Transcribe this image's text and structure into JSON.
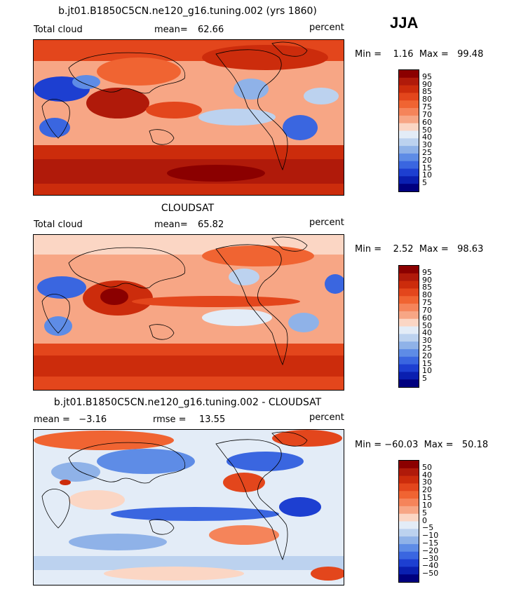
{
  "season": "JJA",
  "panels": [
    {
      "title": "b.jt01.B1850C5CN.ne120_g16.tuning.002 (yrs 1860)",
      "left_label": "Total cloud",
      "stat_label": "mean=",
      "stat_value": "62.66",
      "units": "percent",
      "minmax": "Min =    1.16  Max =   99.48"
    },
    {
      "title": "CLOUDSAT",
      "left_label": "Total cloud",
      "stat_label": "mean=",
      "stat_value": "65.82",
      "units": "percent",
      "minmax": "Min =    2.52  Max =   98.63"
    },
    {
      "title": "b.jt01.B1850C5CN.ne120_g16.tuning.002 - CLOUDSAT",
      "left_label": "mean =   −3.16",
      "stat_label": "rmse =",
      "stat_value": "13.55",
      "units": "percent",
      "minmax": "Min = −60.03  Max =   50.18"
    }
  ],
  "chart_data": [
    {
      "type": "heatmap",
      "title": "b.jt01.B1850C5CN.ne120_g16.tuning.002 (yrs 1860)",
      "variable": "Total cloud",
      "units": "percent",
      "mean": 62.66,
      "min": 1.16,
      "max": 99.48,
      "colorbar_levels": [
        95,
        90,
        85,
        80,
        75,
        70,
        60,
        50,
        40,
        30,
        25,
        20,
        15,
        10,
        5
      ],
      "colorbar_colors": [
        "#8b0000",
        "#b01a0a",
        "#cc2c0c",
        "#e3461c",
        "#f06432",
        "#f5845a",
        "#f7a685",
        "#fbd6c4",
        "#e3ecf7",
        "#bcd2ef",
        "#8fb2e8",
        "#5e8ce6",
        "#3a66e0",
        "#1d3fd1",
        "#0a1fb0",
        "#00007f"
      ]
    },
    {
      "type": "heatmap",
      "title": "CLOUDSAT",
      "variable": "Total cloud",
      "units": "percent",
      "mean": 65.82,
      "min": 2.52,
      "max": 98.63,
      "colorbar_levels": [
        95,
        90,
        85,
        80,
        75,
        70,
        60,
        50,
        40,
        30,
        25,
        20,
        15,
        10,
        5
      ],
      "colorbar_colors": [
        "#8b0000",
        "#b01a0a",
        "#cc2c0c",
        "#e3461c",
        "#f06432",
        "#f5845a",
        "#f7a685",
        "#fbd6c4",
        "#e3ecf7",
        "#bcd2ef",
        "#8fb2e8",
        "#5e8ce6",
        "#3a66e0",
        "#1d3fd1",
        "#0a1fb0",
        "#00007f"
      ]
    },
    {
      "type": "heatmap",
      "title": "b.jt01.B1850C5CN.ne120_g16.tuning.002 - CLOUDSAT",
      "units": "percent",
      "mean": -3.16,
      "rmse": 13.55,
      "min": -60.03,
      "max": 50.18,
      "colorbar_levels": [
        "50",
        "40",
        "30",
        "20",
        "15",
        "10",
        "5",
        "0",
        "−5",
        "−10",
        "−15",
        "−20",
        "−30",
        "−40",
        "−50"
      ],
      "colorbar_colors": [
        "#8b0000",
        "#b01a0a",
        "#cc2c0c",
        "#e3461c",
        "#f06432",
        "#f5845a",
        "#f7a685",
        "#fbd6c4",
        "#e3ecf7",
        "#bcd2ef",
        "#8fb2e8",
        "#5e8ce6",
        "#3a66e0",
        "#1d3fd1",
        "#0a1fb0",
        "#00007f"
      ]
    }
  ]
}
